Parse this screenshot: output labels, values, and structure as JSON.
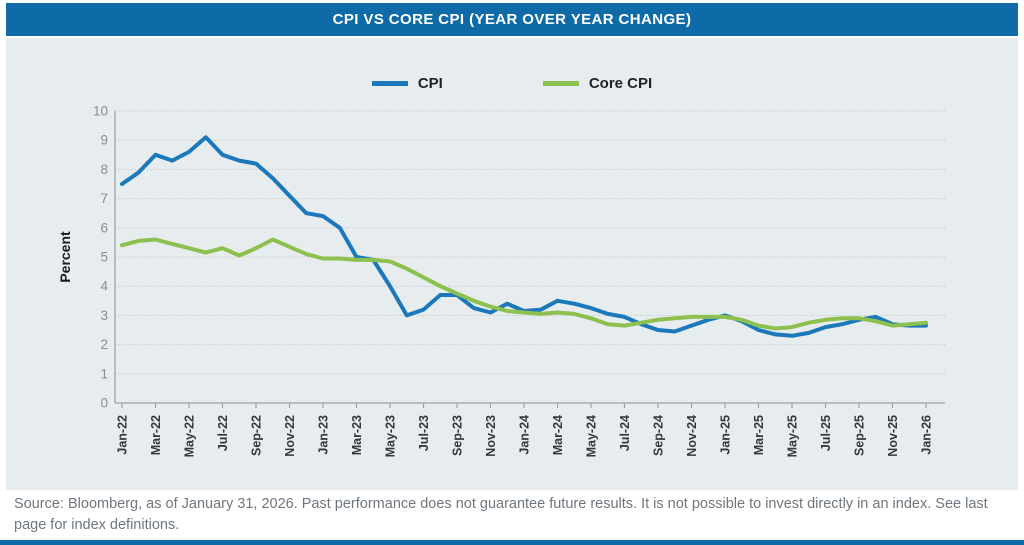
{
  "header": {
    "title": "CPI VS CORE CPI (YEAR OVER YEAR CHANGE)"
  },
  "footer": {
    "text": "Source: Bloomberg, as of January 31, 2026. Past performance does not guarantee future results. It is not possible to invest directly in an index. See last page for index definitions."
  },
  "colors": {
    "accent_blue": "#0e6ba8",
    "panel_background": "#e7ecef",
    "cpi_line": "#1b79bb",
    "core_cpi_line": "#8dc04e",
    "grid": "#b7bcbf",
    "axis": "#9aa1a6",
    "y_tick_text": "#8a8e91",
    "x_tick_text": "#33383b"
  },
  "chart_data": {
    "type": "line",
    "title": "CPI VS CORE CPI (YEAR OVER YEAR CHANGE)",
    "ylabel": "Percent",
    "xlabel": "",
    "ylim": [
      0,
      10
    ],
    "y_ticks": [
      0,
      1,
      2,
      3,
      4,
      5,
      6,
      7,
      8,
      9,
      10
    ],
    "grid": "horizontal-dotted",
    "legend_position": "top-center",
    "x_unit": "month",
    "points_per_tick": 2,
    "x_tick_labels": [
      "Jan-22",
      "Mar-22",
      "May-22",
      "Jul-22",
      "Sep-22",
      "Nov-22",
      "Jan-23",
      "Mar-23",
      "May-23",
      "Jul-23",
      "Sep-23",
      "Nov-23",
      "Jan-24",
      "Mar-24",
      "May-24",
      "Jul-24",
      "Sep-24",
      "Nov-24",
      "Jan-25",
      "Mar-25",
      "May-25",
      "Jul-25",
      "Sep-25",
      "Nov-25",
      "Jan-26"
    ],
    "series": [
      {
        "name": "CPI",
        "color": "#1b79bb",
        "values": [
          7.5,
          7.9,
          8.5,
          8.3,
          8.6,
          9.1,
          8.5,
          8.3,
          8.2,
          7.7,
          7.1,
          6.5,
          6.4,
          6.0,
          5.0,
          4.9,
          4.0,
          3.0,
          3.2,
          3.7,
          3.7,
          3.25,
          3.1,
          3.4,
          3.15,
          3.2,
          3.5,
          3.4,
          3.25,
          3.05,
          2.95,
          2.7,
          2.5,
          2.45,
          2.65,
          2.85,
          3.0,
          2.8,
          2.5,
          2.35,
          2.3,
          2.4,
          2.6,
          2.7,
          2.85,
          2.95,
          2.7,
          2.65,
          2.65
        ]
      },
      {
        "name": "Core CPI",
        "color": "#8dc04e",
        "values": [
          5.4,
          5.55,
          5.6,
          5.45,
          5.3,
          5.15,
          5.3,
          5.05,
          5.3,
          5.6,
          5.35,
          5.1,
          4.95,
          4.95,
          4.9,
          4.9,
          4.85,
          4.6,
          4.3,
          4.0,
          3.75,
          3.5,
          3.3,
          3.15,
          3.1,
          3.05,
          3.1,
          3.05,
          2.9,
          2.7,
          2.65,
          2.75,
          2.85,
          2.9,
          2.95,
          2.95,
          2.95,
          2.85,
          2.65,
          2.55,
          2.6,
          2.75,
          2.85,
          2.9,
          2.9,
          2.8,
          2.65,
          2.7,
          2.75
        ]
      }
    ]
  }
}
